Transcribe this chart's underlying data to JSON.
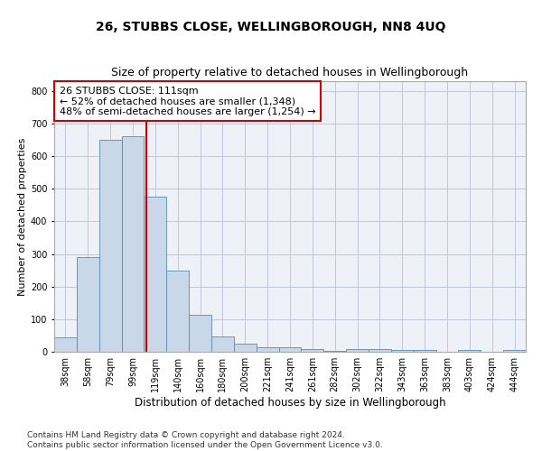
{
  "title": "26, STUBBS CLOSE, WELLINGBOROUGH, NN8 4UQ",
  "subtitle": "Size of property relative to detached houses in Wellingborough",
  "xlabel": "Distribution of detached houses by size in Wellingborough",
  "ylabel": "Number of detached properties",
  "categories": [
    "38sqm",
    "58sqm",
    "79sqm",
    "99sqm",
    "119sqm",
    "140sqm",
    "160sqm",
    "180sqm",
    "200sqm",
    "221sqm",
    "241sqm",
    "261sqm",
    "282sqm",
    "302sqm",
    "322sqm",
    "343sqm",
    "363sqm",
    "383sqm",
    "403sqm",
    "424sqm",
    "444sqm"
  ],
  "values": [
    43,
    291,
    650,
    660,
    475,
    248,
    113,
    48,
    25,
    15,
    13,
    7,
    3,
    8,
    8,
    5,
    5,
    0,
    5,
    0,
    5
  ],
  "bar_color": "#c8d8e8",
  "bar_edge_color": "#5a8ab0",
  "vline_color": "#cc0000",
  "annotation_text": "26 STUBBS CLOSE: 111sqm\n← 52% of detached houses are smaller (1,348)\n48% of semi-detached houses are larger (1,254) →",
  "annotation_box_color": "white",
  "annotation_box_edge_color": "#cc0000",
  "ylim": [
    0,
    830
  ],
  "yticks": [
    0,
    100,
    200,
    300,
    400,
    500,
    600,
    700,
    800
  ],
  "grid_color": "#c0c8d8",
  "bg_color": "#eef2f8",
  "footnote": "Contains HM Land Registry data © Crown copyright and database right 2024.\nContains public sector information licensed under the Open Government Licence v3.0.",
  "title_fontsize": 10,
  "subtitle_fontsize": 9,
  "xlabel_fontsize": 8.5,
  "ylabel_fontsize": 8,
  "tick_fontsize": 7,
  "annotation_fontsize": 8,
  "footnote_fontsize": 6.5
}
